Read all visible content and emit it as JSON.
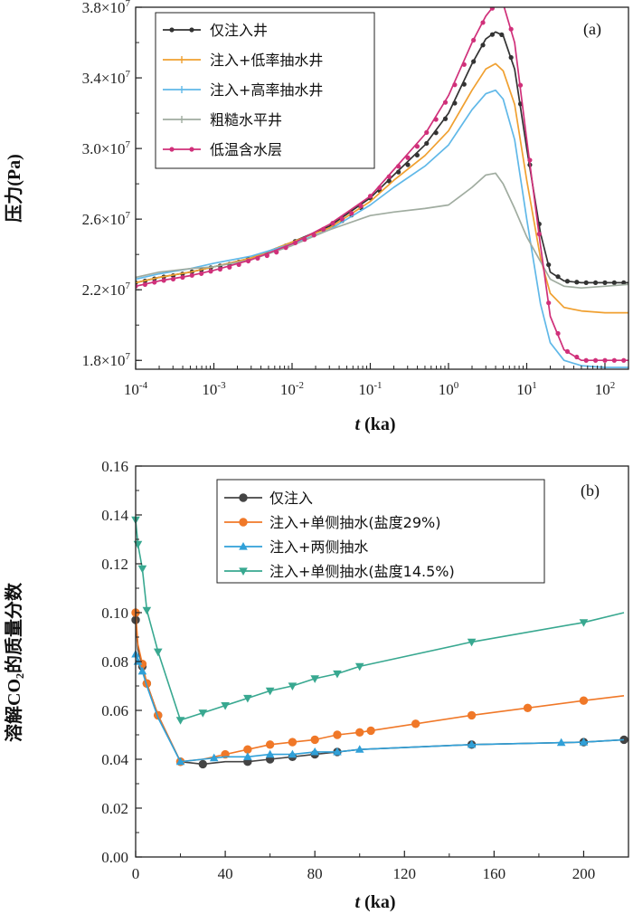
{
  "chart_data": [
    {
      "id": "a",
      "type": "line",
      "panel_label": "(a)",
      "xlabel_var": "t",
      "xlabel_unit": " (ka)",
      "ylabel": "压力(Pa)",
      "x_scale": "log",
      "xlim": [
        0.0001,
        200
      ],
      "ylim": [
        17500000.0,
        38000000.0
      ],
      "y_ticks": [
        {
          "value": 38000000.0,
          "mant": "3.8",
          "exp": "7"
        },
        {
          "value": 34000000.0,
          "mant": "3.4",
          "exp": "7"
        },
        {
          "value": 30000000.0,
          "mant": "3.0",
          "exp": "7"
        },
        {
          "value": 26000000.0,
          "mant": "2.6",
          "exp": "7"
        },
        {
          "value": 22000000.0,
          "mant": "2.2",
          "exp": "7"
        },
        {
          "value": 18000000.0,
          "mant": "1.8",
          "exp": "7"
        }
      ],
      "x_ticks": [
        {
          "value": 0.0001,
          "exp": "-4"
        },
        {
          "value": 0.001,
          "exp": "-3"
        },
        {
          "value": 0.01,
          "exp": "-2"
        },
        {
          "value": 0.1,
          "exp": "-1"
        },
        {
          "value": 1,
          "exp": "0"
        },
        {
          "value": 10,
          "exp": "1"
        },
        {
          "value": 100,
          "exp": "2"
        }
      ],
      "legend_position": "top-left",
      "grid": false,
      "series": [
        {
          "name": "仅注入井",
          "color": "#333333",
          "marker": "dot",
          "x": [
            0.0001,
            0.0002,
            0.0005,
            0.001,
            0.003,
            0.01,
            0.03,
            0.1,
            0.2,
            0.5,
            1,
            2,
            3,
            4,
            5,
            7,
            10,
            15,
            20,
            30,
            50,
            100,
            200
          ],
          "y": [
            22400000.0,
            22700000.0,
            23000000.0,
            23300000.0,
            23800000.0,
            24700000.0,
            25600000.0,
            27200000.0,
            28500000.0,
            30200000.0,
            32000000.0,
            34800000.0,
            36200000.0,
            36600000.0,
            36400000.0,
            34500000.0,
            30000000.0,
            25200000.0,
            23000000.0,
            22500000.0,
            22400000.0,
            22400000.0,
            22400000.0
          ]
        },
        {
          "name": "注入+低率抽水井",
          "color": "#f0a030",
          "marker": "line",
          "x": [
            0.0001,
            0.0002,
            0.0005,
            0.001,
            0.003,
            0.01,
            0.03,
            0.1,
            0.2,
            0.5,
            1,
            2,
            3,
            4,
            5,
            7,
            10,
            15,
            20,
            30,
            50,
            100,
            200
          ],
          "y": [
            22400000.0,
            22700000.0,
            23000000.0,
            23300000.0,
            23800000.0,
            24700000.0,
            25500000.0,
            27000000.0,
            28200000.0,
            29600000.0,
            31000000.0,
            33300000.0,
            34500000.0,
            34800000.0,
            34400000.0,
            32500000.0,
            28200000.0,
            23800000.0,
            21800000.0,
            21000000.0,
            20800000.0,
            20700000.0,
            20700000.0
          ]
        },
        {
          "name": "注入+高率抽水井",
          "color": "#60b8e8",
          "marker": "line",
          "x": [
            0.0001,
            0.0002,
            0.0005,
            0.001,
            0.003,
            0.01,
            0.03,
            0.1,
            0.2,
            0.5,
            1,
            2,
            3,
            4,
            5,
            7,
            10,
            15,
            20,
            30,
            50,
            100,
            200
          ],
          "y": [
            22600000.0,
            22900000.0,
            23200000.0,
            23500000.0,
            23900000.0,
            24600000.0,
            25400000.0,
            26800000.0,
            27800000.0,
            29000000.0,
            30200000.0,
            32200000.0,
            33100000.0,
            33300000.0,
            32800000.0,
            30500000.0,
            26000000.0,
            21200000.0,
            19000000.0,
            18000000.0,
            17700000.0,
            17600000.0,
            17600000.0
          ]
        },
        {
          "name": "粗糙水平井",
          "color": "#a0aca0",
          "marker": "line",
          "x": [
            0.0001,
            0.0002,
            0.0005,
            0.001,
            0.003,
            0.01,
            0.03,
            0.1,
            0.2,
            0.5,
            1,
            2,
            3,
            4,
            5,
            7,
            10,
            15,
            20,
            30,
            50,
            100,
            200
          ],
          "y": [
            22700000.0,
            23000000.0,
            23200000.0,
            23300000.0,
            23700000.0,
            24500000.0,
            25400000.0,
            26200000.0,
            26400000.0,
            26600000.0,
            26800000.0,
            27800000.0,
            28500000.0,
            28600000.0,
            28000000.0,
            26600000.0,
            25000000.0,
            23600000.0,
            22600000.0,
            22200000.0,
            22100000.0,
            22200000.0,
            22300000.0
          ]
        },
        {
          "name": "低温含水层",
          "color": "#d0307a",
          "marker": "dot",
          "x": [
            0.0001,
            0.0002,
            0.0005,
            0.001,
            0.003,
            0.01,
            0.03,
            0.1,
            0.2,
            0.5,
            1,
            2,
            3,
            4,
            5,
            7,
            10,
            15,
            20,
            30,
            50,
            100,
            200
          ],
          "y": [
            22200000.0,
            22500000.0,
            22800000.0,
            23100000.0,
            23700000.0,
            24600000.0,
            25700000.0,
            27300000.0,
            28800000.0,
            30800000.0,
            33000000.0,
            36000000.0,
            37500000.0,
            38200000.0,
            38200000.0,
            36000000.0,
            30500000.0,
            24500000.0,
            20500000.0,
            18600000.0,
            18000000.0,
            18000000.0,
            18000000.0
          ]
        }
      ]
    },
    {
      "id": "b",
      "type": "line",
      "panel_label": "(b)",
      "xlabel_var": "t",
      "xlabel_unit": " (ka)",
      "ylabel": "溶解CO₂的质量分数",
      "x_scale": "linear",
      "xlim": [
        0,
        220
      ],
      "ylim": [
        0,
        0.16
      ],
      "x_ticks": [
        0,
        40,
        80,
        120,
        160,
        200
      ],
      "y_ticks": [
        0.16,
        0.14,
        0.12,
        0.1,
        0.08,
        0.06,
        0.04,
        0.02,
        0.0
      ],
      "legend_position": "top-right",
      "grid": false,
      "series": [
        {
          "name": "仅注入",
          "color": "#444444",
          "marker": "circle",
          "x": [
            0,
            1,
            3,
            5,
            10,
            20,
            30,
            40,
            50,
            60,
            70,
            80,
            90,
            100,
            150,
            200,
            218
          ],
          "y": [
            0.097,
            0.085,
            0.078,
            0.071,
            0.058,
            0.039,
            0.038,
            0.039,
            0.039,
            0.04,
            0.041,
            0.042,
            0.043,
            0.044,
            0.046,
            0.047,
            0.048
          ],
          "marker_x": [
            0,
            3,
            5,
            10,
            20,
            30,
            50,
            60,
            70,
            80,
            90,
            150,
            200,
            218
          ]
        },
        {
          "name": "注入+单侧抽水(盐度29%)",
          "color": "#f07828",
          "marker": "circle",
          "x": [
            0,
            1,
            3,
            5,
            10,
            20,
            30,
            40,
            50,
            60,
            70,
            80,
            90,
            100,
            150,
            200,
            218
          ],
          "y": [
            0.1,
            0.087,
            0.079,
            0.071,
            0.058,
            0.039,
            0.04,
            0.042,
            0.044,
            0.046,
            0.047,
            0.048,
            0.05,
            0.051,
            0.058,
            0.064,
            0.066
          ],
          "marker_x": [
            0,
            3,
            5,
            10,
            20,
            40,
            50,
            60,
            70,
            80,
            90,
            100,
            105,
            125,
            150,
            175,
            200
          ]
        },
        {
          "name": "注入+两侧抽水",
          "color": "#30a0d8",
          "marker": "triangle-up",
          "x": [
            0,
            1,
            3,
            5,
            10,
            20,
            30,
            40,
            50,
            60,
            70,
            80,
            90,
            100,
            150,
            200,
            218
          ],
          "y": [
            0.083,
            0.08,
            0.076,
            0.07,
            0.057,
            0.039,
            0.04,
            0.041,
            0.041,
            0.042,
            0.042,
            0.043,
            0.043,
            0.044,
            0.046,
            0.047,
            0.048
          ],
          "marker_x": [
            0,
            1,
            3,
            20,
            35,
            50,
            60,
            70,
            80,
            90,
            100,
            150,
            190,
            200
          ]
        },
        {
          "name": "注入+单侧抽水(盐度14.5%)",
          "color": "#38a890",
          "marker": "triangle-down",
          "x": [
            0,
            1,
            3,
            5,
            10,
            20,
            30,
            40,
            50,
            60,
            70,
            80,
            90,
            100,
            150,
            200,
            218
          ],
          "y": [
            0.138,
            0.128,
            0.118,
            0.101,
            0.084,
            0.056,
            0.059,
            0.062,
            0.065,
            0.068,
            0.07,
            0.073,
            0.075,
            0.078,
            0.088,
            0.096,
            0.1
          ],
          "marker_x": [
            0,
            1,
            3,
            5,
            10,
            20,
            30,
            40,
            50,
            60,
            70,
            80,
            90,
            100,
            150,
            200
          ]
        }
      ]
    }
  ]
}
